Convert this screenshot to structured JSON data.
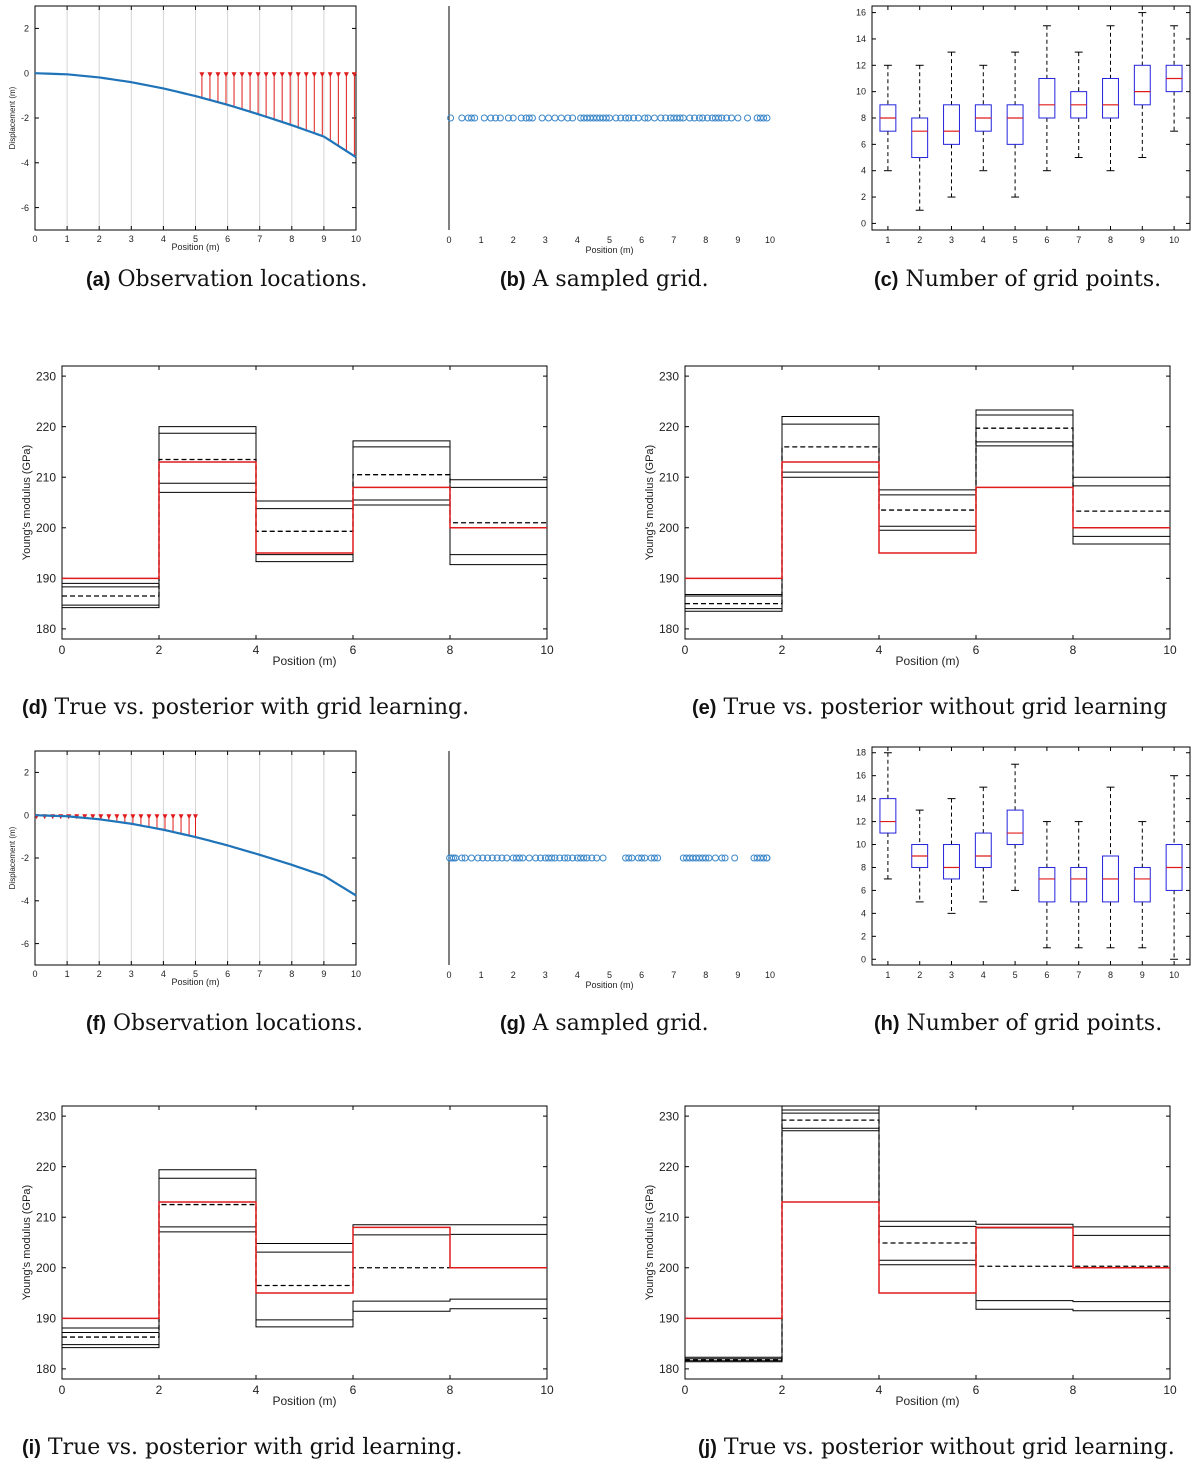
{
  "captions": {
    "a": {
      "tag": "(a)",
      "text": "Observation locations."
    },
    "b": {
      "tag": "(b)",
      "text": "A sampled grid."
    },
    "c": {
      "tag": "(c)",
      "text": "Number of grid points."
    },
    "d": {
      "tag": "(d)",
      "text": "True vs.  posterior with grid learning."
    },
    "e": {
      "tag": "(e)",
      "text": "True vs.  posterior without grid learning"
    },
    "f": {
      "tag": "(f)",
      "text": "Observation locations."
    },
    "g": {
      "tag": "(g)",
      "text": "A sampled grid."
    },
    "h": {
      "tag": "(h)",
      "text": "Number of grid points."
    },
    "i": {
      "tag": "(i)",
      "text": "True vs.  posterior with grid learning."
    },
    "j": {
      "tag": "(j)",
      "text": "True vs.  posterior without grid learning."
    }
  },
  "colors": {
    "beam": "#1f73b8",
    "marker": "#e01b1b",
    "grid_point": "#3a86c8",
    "box": "#2222dd",
    "median": "#e01b1b",
    "true_line": "#e01b1b",
    "posterior": "#000000"
  },
  "chart_data": [
    {
      "id": "a",
      "type": "line",
      "xlabel": "Position (m)",
      "ylabel": "Displacement (m)",
      "xlim": [
        0,
        10
      ],
      "ylim": [
        -7,
        3
      ],
      "xticks": [
        0,
        1,
        2,
        3,
        4,
        5,
        6,
        7,
        8,
        9,
        10
      ],
      "yticks": [
        -6,
        -4,
        -2,
        0,
        2
      ],
      "vertical_grid": true,
      "series": [
        {
          "x": [
            0,
            1,
            2,
            3,
            4,
            5,
            6,
            7,
            8,
            9,
            10
          ],
          "y": [
            0,
            -0.05,
            -0.19,
            -0.4,
            -0.68,
            -1.02,
            -1.41,
            -1.85,
            -2.32,
            -2.83,
            -3.75
          ]
        }
      ],
      "observations": {
        "x": [
          5.2,
          5.45,
          5.7,
          5.95,
          6.2,
          6.45,
          6.7,
          6.95,
          7.2,
          7.45,
          7.7,
          7.95,
          8.2,
          8.45,
          8.7,
          8.95,
          9.2,
          9.45,
          9.7,
          9.95
        ]
      }
    },
    {
      "id": "b",
      "type": "scatter",
      "xlabel": "Position (m)",
      "xlim": [
        0,
        10
      ],
      "xticks": [
        0,
        1,
        2,
        3,
        4,
        5,
        6,
        7,
        8,
        9,
        10
      ],
      "y_level": -2,
      "x": [
        0.05,
        0.4,
        0.6,
        0.7,
        0.8,
        1.1,
        1.3,
        1.45,
        1.6,
        1.85,
        2.0,
        2.25,
        2.4,
        2.5,
        2.6,
        2.9,
        3.1,
        3.3,
        3.5,
        3.7,
        3.85,
        4.1,
        4.2,
        4.3,
        4.4,
        4.5,
        4.6,
        4.7,
        4.8,
        4.9,
        5.0,
        5.2,
        5.35,
        5.5,
        5.6,
        5.75,
        5.9,
        6.1,
        6.2,
        6.4,
        6.6,
        6.75,
        6.9,
        7.0,
        7.1,
        7.2,
        7.3,
        7.5,
        7.65,
        7.8,
        7.9,
        8.05,
        8.2,
        8.3,
        8.4,
        8.5,
        8.65,
        8.8,
        9.0,
        9.3,
        9.6,
        9.7,
        9.8,
        9.95
      ]
    },
    {
      "id": "c",
      "type": "box",
      "categories": [
        "1",
        "2",
        "3",
        "4",
        "5",
        "6",
        "7",
        "8",
        "9",
        "10"
      ],
      "ylim": [
        -0.5,
        16.5
      ],
      "yticks": [
        0,
        2,
        4,
        6,
        8,
        10,
        12,
        14,
        16
      ],
      "boxes": [
        {
          "min": 4,
          "q1": 7,
          "median": 8,
          "q3": 9,
          "max": 12
        },
        {
          "min": 1,
          "q1": 5,
          "median": 7,
          "q3": 8,
          "max": 12
        },
        {
          "min": 2,
          "q1": 6,
          "median": 7,
          "q3": 9,
          "max": 13
        },
        {
          "min": 4,
          "q1": 7,
          "median": 8,
          "q3": 9,
          "max": 12
        },
        {
          "min": 2,
          "q1": 6,
          "median": 8,
          "q3": 9,
          "max": 13
        },
        {
          "min": 4,
          "q1": 8,
          "median": 9,
          "q3": 11,
          "max": 15
        },
        {
          "min": 5,
          "q1": 8,
          "median": 9,
          "q3": 10,
          "max": 13
        },
        {
          "min": 4,
          "q1": 8,
          "median": 9,
          "q3": 11,
          "max": 15
        },
        {
          "min": 5,
          "q1": 9,
          "median": 10,
          "q3": 12,
          "max": 16
        },
        {
          "min": 7,
          "q1": 10,
          "median": 11,
          "q3": 12,
          "max": 15
        }
      ]
    },
    {
      "id": "d",
      "type": "step",
      "xlabel": "Position (m)",
      "ylabel": "Young's modulus (GPa)",
      "xlim": [
        0,
        10
      ],
      "ylim": [
        178,
        232
      ],
      "xticks": [
        0,
        2,
        4,
        6,
        8,
        10
      ],
      "yticks": [
        180,
        190,
        200,
        210,
        220,
        230
      ],
      "true": [
        190,
        213,
        195,
        208,
        200
      ],
      "mean": [
        186.5,
        213.5,
        199.3,
        210.5,
        201
      ],
      "samples": [
        [
          184.2,
          220,
          205.3,
          217.2,
          209.5
        ],
        [
          184.7,
          218.7,
          203.8,
          216,
          208
        ],
        [
          188.3,
          208.8,
          194.7,
          204.5,
          194.7
        ],
        [
          189,
          207,
          193.3,
          205.5,
          192.7
        ]
      ]
    },
    {
      "id": "e",
      "type": "step",
      "xlabel": "Position (m)",
      "ylabel": "Young's modulus (GPa)",
      "xlim": [
        0,
        10
      ],
      "ylim": [
        178,
        232
      ],
      "xticks": [
        0,
        2,
        4,
        6,
        8,
        10
      ],
      "yticks": [
        180,
        190,
        200,
        210,
        220,
        230
      ],
      "true": [
        190,
        213,
        195,
        208,
        200
      ],
      "mean": [
        185,
        216,
        203.5,
        219.7,
        203.3
      ],
      "samples": [
        [
          183.5,
          222,
          207.5,
          223.3,
          210
        ],
        [
          184,
          220.5,
          206.5,
          222.3,
          208.3
        ],
        [
          186.5,
          211,
          200.3,
          217,
          198.3
        ],
        [
          186.8,
          210,
          199.5,
          216.2,
          196.8
        ]
      ]
    },
    {
      "id": "f",
      "type": "line",
      "xlabel": "Position (m)",
      "ylabel": "Displacement (m)",
      "xlim": [
        0,
        10
      ],
      "ylim": [
        -7,
        3
      ],
      "xticks": [
        0,
        1,
        2,
        3,
        4,
        5,
        6,
        7,
        8,
        9,
        10
      ],
      "yticks": [
        -6,
        -4,
        -2,
        0,
        2
      ],
      "vertical_grid": true,
      "series": [
        {
          "x": [
            0,
            1,
            2,
            3,
            4,
            5,
            6,
            7,
            8,
            9,
            10
          ],
          "y": [
            0,
            -0.05,
            -0.19,
            -0.4,
            -0.68,
            -1.02,
            -1.41,
            -1.85,
            -2.32,
            -2.83,
            -3.75
          ]
        }
      ],
      "observations": {
        "x": [
          0.05,
          0.3,
          0.55,
          0.8,
          1.05,
          1.3,
          1.55,
          1.8,
          2.05,
          2.3,
          2.55,
          2.8,
          3.05,
          3.3,
          3.55,
          3.8,
          4.05,
          4.3,
          4.55,
          4.8,
          5.0
        ]
      }
    },
    {
      "id": "g",
      "type": "scatter",
      "xlabel": "Position (m)",
      "xlim": [
        0,
        10
      ],
      "xticks": [
        0,
        1,
        2,
        3,
        4,
        5,
        6,
        7,
        8,
        9,
        10
      ],
      "y_level": -2,
      "x": [
        0.02,
        0.08,
        0.14,
        0.2,
        0.4,
        0.5,
        0.7,
        0.9,
        1.05,
        1.2,
        1.35,
        1.5,
        1.65,
        1.8,
        2.0,
        2.1,
        2.2,
        2.3,
        2.5,
        2.7,
        2.85,
        3.0,
        3.1,
        3.2,
        3.3,
        3.45,
        3.6,
        3.7,
        3.85,
        4.0,
        4.1,
        4.2,
        4.3,
        4.45,
        4.6,
        4.8,
        5.5,
        5.6,
        5.7,
        5.9,
        6.0,
        6.1,
        6.3,
        6.4,
        6.5,
        7.3,
        7.4,
        7.5,
        7.6,
        7.7,
        7.8,
        7.9,
        8.0,
        8.1,
        8.3,
        8.5,
        8.6,
        8.9,
        9.5,
        9.6,
        9.7,
        9.8,
        9.9,
        10.0
      ]
    },
    {
      "id": "h",
      "type": "box",
      "categories": [
        "1",
        "2",
        "3",
        "4",
        "5",
        "6",
        "7",
        "8",
        "9",
        "10"
      ],
      "ylim": [
        -0.5,
        18.5
      ],
      "yticks": [
        0,
        2,
        4,
        6,
        8,
        10,
        12,
        14,
        16,
        18
      ],
      "boxes": [
        {
          "min": 7,
          "q1": 11,
          "median": 12,
          "q3": 14,
          "max": 18
        },
        {
          "min": 5,
          "q1": 8,
          "median": 9,
          "q3": 10,
          "max": 13
        },
        {
          "min": 4,
          "q1": 7,
          "median": 8,
          "q3": 10,
          "max": 14
        },
        {
          "min": 5,
          "q1": 8,
          "median": 9,
          "q3": 11,
          "max": 15
        },
        {
          "min": 6,
          "q1": 10,
          "median": 11,
          "q3": 13,
          "max": 17
        },
        {
          "min": 1,
          "q1": 5,
          "median": 7,
          "q3": 8,
          "max": 12
        },
        {
          "min": 1,
          "q1": 5,
          "median": 7,
          "q3": 8,
          "max": 12
        },
        {
          "min": 1,
          "q1": 5,
          "median": 7,
          "q3": 9,
          "max": 15
        },
        {
          "min": 1,
          "q1": 5,
          "median": 7,
          "q3": 8,
          "max": 12
        },
        {
          "min": 0,
          "q1": 6,
          "median": 8,
          "q3": 10,
          "max": 16
        }
      ]
    },
    {
      "id": "i",
      "type": "step",
      "xlabel": "Position (m)",
      "ylabel": "Young's modulus (GPa)",
      "xlim": [
        0,
        10
      ],
      "ylim": [
        178,
        232
      ],
      "xticks": [
        0,
        2,
        4,
        6,
        8,
        10
      ],
      "yticks": [
        180,
        190,
        200,
        210,
        220,
        230
      ],
      "true": [
        190,
        213,
        195,
        208,
        200
      ],
      "mean": [
        186.3,
        212.5,
        196.5,
        200,
        200
      ],
      "samples": [
        [
          184.2,
          219.4,
          204.8,
          208.5,
          208.5
        ],
        [
          184.8,
          217.7,
          203.1,
          206.5,
          206.6
        ],
        [
          187.2,
          208.1,
          189.7,
          193.4,
          193.8
        ],
        [
          188.1,
          207.1,
          188.3,
          191.4,
          191.9
        ]
      ]
    },
    {
      "id": "j",
      "type": "step",
      "xlabel": "Position (m)",
      "ylabel": "Young's modulus (GPa)",
      "xlim": [
        0,
        10
      ],
      "ylim": [
        178,
        232
      ],
      "xticks": [
        0,
        2,
        4,
        6,
        8,
        10
      ],
      "yticks": [
        180,
        190,
        200,
        210,
        220,
        230
      ],
      "true": [
        190,
        213,
        195,
        208,
        200
      ],
      "mean": [
        181.8,
        229.2,
        204.9,
        200.3,
        200.3
      ],
      "samples": [
        [
          181.4,
          231.2,
          209.2,
          208.6,
          208.1
        ],
        [
          181.6,
          230.6,
          208.2,
          207.9,
          206.4
        ],
        [
          182,
          227.6,
          201.5,
          193.5,
          193.3
        ],
        [
          182.3,
          227.1,
          200.6,
          191.8,
          191.5
        ]
      ]
    }
  ]
}
